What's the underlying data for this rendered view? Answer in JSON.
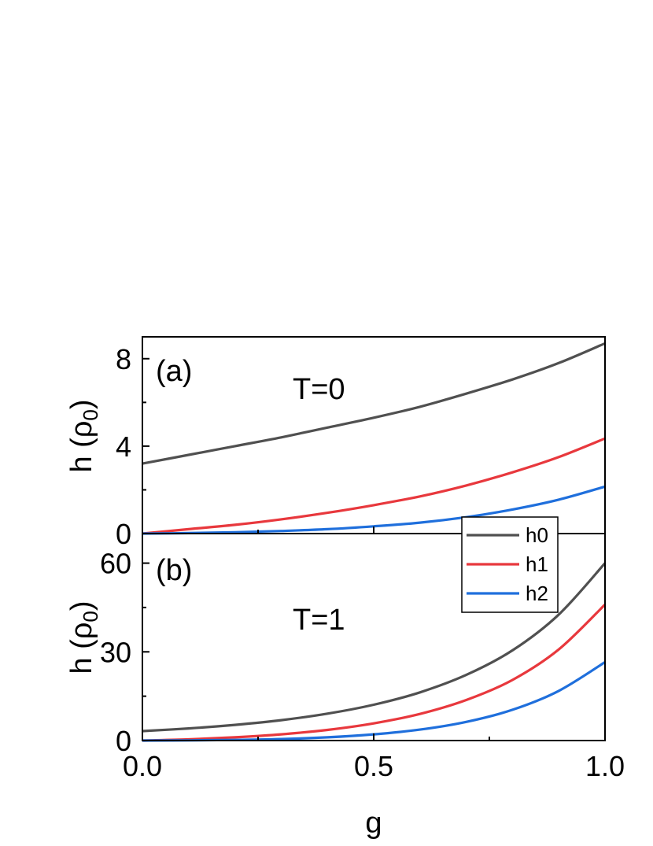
{
  "colors": {
    "h0": "#505050",
    "h1": "#e8383d",
    "h2": "#1f6fdc"
  },
  "legend": {
    "placement": "top-right of panel (b)",
    "entries": [
      {
        "name": "h0",
        "color": "#505050"
      },
      {
        "name": "h1",
        "color": "#e8383d"
      },
      {
        "name": "h2",
        "color": "#1f6fdc"
      }
    ]
  },
  "xaxis": {
    "label": "g",
    "range": [
      0,
      1
    ],
    "ticks": [
      {
        "value": 0,
        "label": "0.0"
      },
      {
        "value": 0.5,
        "label": "0.5"
      },
      {
        "value": 1,
        "label": "1.0"
      }
    ]
  },
  "chart_data": [
    {
      "type": "line",
      "panel": "(a)",
      "annotation": "T=0",
      "ylabel": "h (ρ0)",
      "xlim": [
        0,
        1
      ],
      "ylim": [
        0,
        9
      ],
      "yticks": [
        0,
        4,
        8
      ],
      "grid": false,
      "x": [
        0,
        0.1,
        0.2,
        0.3,
        0.4,
        0.5,
        0.6,
        0.7,
        0.8,
        0.9,
        1.0
      ],
      "series": [
        {
          "name": "h0",
          "values": [
            3.2,
            3.6,
            4.0,
            4.4,
            4.85,
            5.3,
            5.8,
            6.4,
            7.05,
            7.8,
            8.7
          ]
        },
        {
          "name": "h1",
          "values": [
            0.0,
            0.2,
            0.4,
            0.65,
            0.95,
            1.3,
            1.7,
            2.2,
            2.8,
            3.5,
            4.35
          ]
        },
        {
          "name": "h2",
          "values": [
            0.0,
            0.02,
            0.06,
            0.12,
            0.2,
            0.33,
            0.5,
            0.75,
            1.1,
            1.55,
            2.15
          ]
        }
      ]
    },
    {
      "type": "line",
      "panel": "(b)",
      "annotation": "T=1",
      "ylabel": "h (ρ0)",
      "xlim": [
        0,
        1
      ],
      "ylim": [
        0,
        70
      ],
      "yticks": [
        0,
        30,
        60
      ],
      "grid": false,
      "x": [
        0,
        0.1,
        0.2,
        0.3,
        0.4,
        0.5,
        0.6,
        0.7,
        0.8,
        0.9,
        1.0
      ],
      "series": [
        {
          "name": "h0",
          "values": [
            3.2,
            4.1,
            5.3,
            6.9,
            9.1,
            12.1,
            16.3,
            22.2,
            30.5,
            42.6,
            60.0
          ]
        },
        {
          "name": "h1",
          "values": [
            0.0,
            0.4,
            1.1,
            2.1,
            3.6,
            5.8,
            9.0,
            13.7,
            20.5,
            30.8,
            46.0
          ]
        },
        {
          "name": "h2",
          "values": [
            0.0,
            0.05,
            0.2,
            0.5,
            1.1,
            2.1,
            3.7,
            6.3,
            10.4,
            16.8,
            26.5
          ]
        }
      ]
    }
  ]
}
